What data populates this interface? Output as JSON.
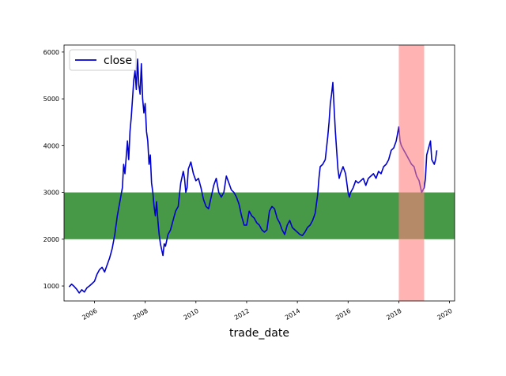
{
  "chart_data": {
    "type": "line",
    "xlabel": "trade_date",
    "ylabel": "",
    "title": "",
    "xlim": [
      2004.8,
      2020.2
    ],
    "ylim": [
      680,
      6150
    ],
    "x_ticks": [
      "2006",
      "2008",
      "2010",
      "2012",
      "2014",
      "2016",
      "2018",
      "2020"
    ],
    "y_ticks": [
      "1000",
      "2000",
      "3000",
      "4000",
      "5000",
      "6000"
    ],
    "grid": false,
    "legend": {
      "position": "top-left",
      "entries": [
        "close"
      ]
    },
    "colors": {
      "line": "#0000cc",
      "horizontal_band": "#2e8b2e",
      "vertical_band": "#ff8080"
    },
    "horizontal_band": {
      "y_range": [
        2000,
        3000
      ]
    },
    "vertical_band": {
      "x_range": [
        2018.0,
        2019.0
      ]
    },
    "series": [
      {
        "name": "close",
        "x": [
          2005.0,
          2005.1,
          2005.2,
          2005.3,
          2005.4,
          2005.5,
          2005.6,
          2005.7,
          2005.8,
          2005.9,
          2006.0,
          2006.1,
          2006.2,
          2006.3,
          2006.4,
          2006.5,
          2006.6,
          2006.7,
          2006.8,
          2006.9,
          2007.0,
          2007.1,
          2007.15,
          2007.2,
          2007.3,
          2007.35,
          2007.4,
          2007.45,
          2007.5,
          2007.55,
          2007.6,
          2007.65,
          2007.7,
          2007.75,
          2007.8,
          2007.85,
          2007.9,
          2007.95,
          2008.0,
          2008.05,
          2008.1,
          2008.15,
          2008.2,
          2008.25,
          2008.3,
          2008.35,
          2008.4,
          2008.45,
          2008.5,
          2008.55,
          2008.6,
          2008.7,
          2008.75,
          2008.8,
          2008.9,
          2009.0,
          2009.1,
          2009.2,
          2009.3,
          2009.4,
          2009.5,
          2009.55,
          2009.6,
          2009.65,
          2009.7,
          2009.8,
          2009.9,
          2010.0,
          2010.1,
          2010.2,
          2010.3,
          2010.4,
          2010.5,
          2010.6,
          2010.7,
          2010.8,
          2010.9,
          2011.0,
          2011.1,
          2011.2,
          2011.3,
          2011.4,
          2011.5,
          2011.6,
          2011.7,
          2011.8,
          2011.9,
          2012.0,
          2012.1,
          2012.2,
          2012.3,
          2012.4,
          2012.5,
          2012.6,
          2012.7,
          2012.8,
          2012.9,
          2013.0,
          2013.1,
          2013.2,
          2013.3,
          2013.4,
          2013.5,
          2013.6,
          2013.7,
          2013.8,
          2013.9,
          2014.0,
          2014.1,
          2014.2,
          2014.3,
          2014.4,
          2014.5,
          2014.6,
          2014.7,
          2014.8,
          2014.85,
          2014.9,
          2015.0,
          2015.1,
          2015.2,
          2015.25,
          2015.3,
          2015.35,
          2015.4,
          2015.45,
          2015.5,
          2015.55,
          2015.6,
          2015.65,
          2015.7,
          2015.8,
          2015.9,
          2016.0,
          2016.05,
          2016.1,
          2016.2,
          2016.3,
          2016.4,
          2016.5,
          2016.6,
          2016.7,
          2016.8,
          2016.9,
          2017.0,
          2017.1,
          2017.2,
          2017.3,
          2017.4,
          2017.5,
          2017.6,
          2017.7,
          2017.8,
          2017.9,
          2018.0,
          2018.05,
          2018.1,
          2018.2,
          2018.3,
          2018.4,
          2018.5,
          2018.6,
          2018.7,
          2018.8,
          2018.9,
          2019.0,
          2019.05,
          2019.1,
          2019.2,
          2019.25,
          2019.3,
          2019.4,
          2019.45,
          2019.5
        ],
        "y": [
          980,
          1040,
          990,
          930,
          850,
          920,
          870,
          960,
          1000,
          1050,
          1100,
          1250,
          1350,
          1400,
          1300,
          1450,
          1600,
          1800,
          2100,
          2500,
          2800,
          3100,
          3600,
          3400,
          4100,
          3700,
          4300,
          4600,
          5000,
          5400,
          5600,
          5200,
          5850,
          5300,
          5100,
          5750,
          5000,
          4700,
          4900,
          4300,
          4100,
          3600,
          3800,
          3200,
          3000,
          2700,
          2500,
          2800,
          2400,
          2100,
          1900,
          1650,
          1900,
          1850,
          2100,
          2200,
          2400,
          2600,
          2700,
          3200,
          3450,
          3300,
          3000,
          3100,
          3500,
          3650,
          3400,
          3250,
          3300,
          3100,
          2850,
          2700,
          2650,
          2900,
          3150,
          3300,
          3000,
          2900,
          3000,
          3350,
          3200,
          3050,
          3000,
          2900,
          2750,
          2500,
          2300,
          2300,
          2600,
          2500,
          2450,
          2350,
          2300,
          2200,
          2150,
          2200,
          2600,
          2700,
          2650,
          2450,
          2350,
          2200,
          2100,
          2300,
          2400,
          2250,
          2200,
          2150,
          2100,
          2080,
          2150,
          2250,
          2300,
          2400,
          2550,
          2950,
          3300,
          3550,
          3600,
          3700,
          4200,
          4500,
          4900,
          5100,
          5350,
          4800,
          4300,
          3900,
          3500,
          3300,
          3400,
          3550,
          3400,
          3000,
          2900,
          3000,
          3100,
          3250,
          3200,
          3250,
          3300,
          3150,
          3300,
          3350,
          3400,
          3300,
          3450,
          3400,
          3550,
          3600,
          3700,
          3900,
          3950,
          4100,
          4400,
          4100,
          4000,
          3900,
          3800,
          3700,
          3600,
          3550,
          3350,
          3250,
          3000,
          3100,
          3300,
          3800,
          4000,
          4100,
          3700,
          3600,
          3700,
          3900
        ]
      }
    ]
  }
}
